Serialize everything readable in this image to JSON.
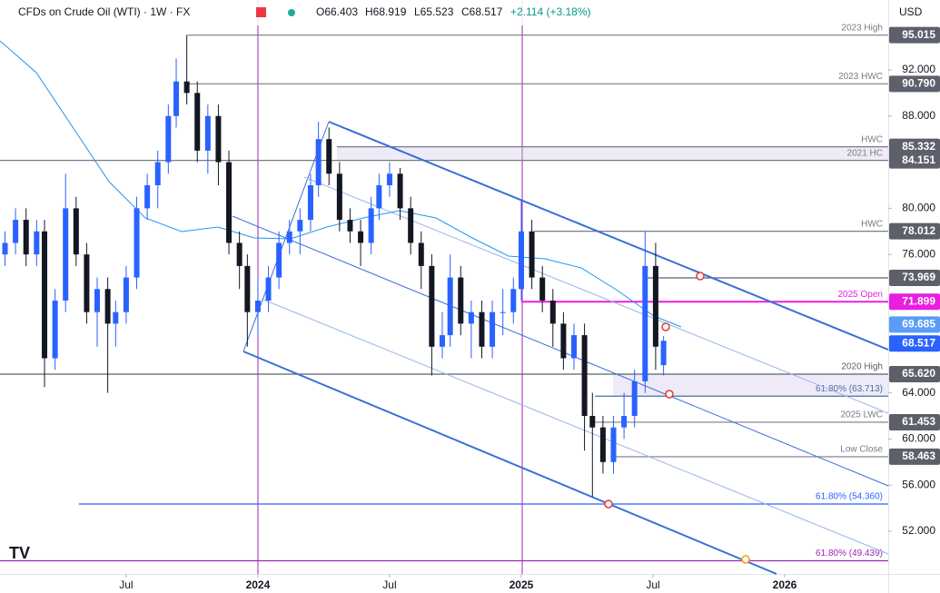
{
  "header": {
    "symbol": "CFDs on Crude Oil (WTI) · 1W · FX",
    "open": "O66.403",
    "high": "H68.919",
    "low": "L65.523",
    "close": "C68.517",
    "change": "+2.114 (+3.18%)",
    "currency": "USD"
  },
  "chart_data": {
    "type": "candlestick",
    "up_color": "#2962ff",
    "down_color": "#131722",
    "x": [
      2023.04,
      2023.08,
      2023.12,
      2023.16,
      2023.19,
      2023.23,
      2023.27,
      2023.31,
      2023.35,
      2023.39,
      2023.43,
      2023.46,
      2023.5,
      2023.54,
      2023.58,
      2023.62,
      2023.66,
      2023.69,
      2023.73,
      2023.77,
      2023.81,
      2023.85,
      2023.89,
      2023.93,
      2023.96,
      2024.0,
      2024.04,
      2024.08,
      2024.12,
      2024.16,
      2024.2,
      2024.23,
      2024.27,
      2024.31,
      2024.35,
      2024.39,
      2024.43,
      2024.46,
      2024.5,
      2024.54,
      2024.58,
      2024.62,
      2024.66,
      2024.7,
      2024.73,
      2024.77,
      2024.81,
      2024.85,
      2024.89,
      2024.93,
      2024.97,
      2025.0,
      2025.04,
      2025.08,
      2025.12,
      2025.16,
      2025.2,
      2025.24,
      2025.27,
      2025.31,
      2025.35,
      2025.39,
      2025.43,
      2025.47,
      2025.51,
      2025.54
    ],
    "ohlc": [
      [
        76,
        78,
        75,
        77
      ],
      [
        77,
        80,
        76,
        79
      ],
      [
        79,
        80,
        75,
        76
      ],
      [
        76,
        79,
        75,
        78
      ],
      [
        78,
        79,
        64.5,
        67
      ],
      [
        67,
        73,
        66,
        72
      ],
      [
        72,
        83,
        71,
        80
      ],
      [
        80,
        81,
        75,
        76
      ],
      [
        76,
        77,
        70,
        71
      ],
      [
        71,
        74,
        68,
        73
      ],
      [
        73,
        74,
        64,
        70
      ],
      [
        70,
        72,
        68,
        71
      ],
      [
        71,
        75,
        70,
        74
      ],
      [
        74,
        81,
        73,
        80
      ],
      [
        80,
        83,
        79,
        82
      ],
      [
        82,
        85,
        80,
        84
      ],
      [
        84,
        89,
        83,
        88
      ],
      [
        88,
        93,
        87,
        91
      ],
      [
        91,
        95,
        89,
        90
      ],
      [
        90,
        91,
        84,
        85
      ],
      [
        85,
        89,
        83,
        88
      ],
      [
        88,
        89,
        82,
        84
      ],
      [
        84,
        85,
        76,
        77
      ],
      [
        77,
        78,
        73,
        75
      ],
      [
        75,
        76,
        68,
        71
      ],
      [
        71,
        74,
        69,
        72
      ],
      [
        72,
        75,
        71,
        74
      ],
      [
        74,
        78,
        73,
        77
      ],
      [
        77,
        79,
        76,
        78
      ],
      [
        78,
        80,
        76,
        79
      ],
      [
        79,
        83,
        78,
        82
      ],
      [
        82,
        87.5,
        81,
        86
      ],
      [
        86,
        87,
        82,
        83
      ],
      [
        83,
        84,
        78,
        79
      ],
      [
        79,
        80,
        77,
        78
      ],
      [
        78,
        79,
        75,
        77
      ],
      [
        77,
        81,
        76,
        80
      ],
      [
        80,
        83,
        79,
        82
      ],
      [
        82,
        84,
        81,
        83
      ],
      [
        83,
        83.5,
        79,
        80
      ],
      [
        80,
        81,
        76,
        77
      ],
      [
        77,
        78,
        73,
        75
      ],
      [
        75,
        76,
        65.5,
        68
      ],
      [
        68,
        71,
        67,
        69
      ],
      [
        69,
        76,
        68,
        74
      ],
      [
        74,
        75,
        69,
        70
      ],
      [
        70,
        72,
        67,
        71
      ],
      [
        71,
        72,
        67,
        68
      ],
      [
        68,
        72,
        67,
        71
      ],
      [
        71,
        73,
        69,
        71
      ],
      [
        71,
        74,
        70,
        73
      ],
      [
        73,
        80.8,
        72,
        78
      ],
      [
        78,
        79,
        73,
        74
      ],
      [
        74,
        75,
        71,
        72
      ],
      [
        72,
        73,
        68,
        70
      ],
      [
        70,
        71,
        66,
        67
      ],
      [
        67,
        70,
        66,
        69
      ],
      [
        69,
        70,
        59,
        62
      ],
      [
        62,
        64,
        55,
        61
      ],
      [
        61,
        62,
        57,
        58
      ],
      [
        58,
        62,
        57,
        61
      ],
      [
        61,
        64,
        60,
        62
      ],
      [
        62,
        66,
        61,
        65
      ],
      [
        65,
        78,
        64,
        75
      ],
      [
        75,
        77,
        66,
        68
      ],
      [
        66.403,
        68.919,
        65.523,
        68.517
      ]
    ],
    "xlim": [
      2023.021,
      2026.393
    ],
    "xticks": [
      {
        "value": 2023.5,
        "label": "Jul"
      },
      2024,
      {
        "value": 2024.5,
        "label": "Jul"
      },
      2025,
      {
        "value": 2025.5,
        "label": "Jul"
      },
      2026
    ],
    "ylim": [
      47.67,
      98.06
    ],
    "yticks": [
      {
        "value": 92,
        "label": "92.000"
      },
      {
        "value": 88,
        "label": "88.000"
      },
      {
        "value": 80,
        "label": "80.000"
      },
      {
        "value": 76,
        "label": "76.000"
      },
      {
        "value": 64,
        "label": "64.000"
      },
      {
        "value": 60,
        "label": "60.000"
      },
      {
        "value": 56,
        "label": "56.000"
      },
      {
        "value": 52,
        "label": "52.000"
      }
    ],
    "levels": [
      {
        "value": 95.015,
        "label": "2023 High",
        "tag": "95.015",
        "x_start": 2023.73,
        "color": "#787b86"
      },
      {
        "value": 90.79,
        "label": "2023 HWC",
        "tag": "90.790",
        "x_start": 2023.73,
        "color": "#787b86"
      },
      {
        "value": 85.332,
        "label": "HWC",
        "tag": "85.332",
        "x_start": 2024.3,
        "color": "#787b86"
      },
      {
        "value": 84.151,
        "label": "2021 HC",
        "tag": "84.151",
        "color": "#787b86"
      },
      {
        "value": 78.012,
        "label": "HWC",
        "tag": "78.012",
        "x_start": 2025.05,
        "color": "#787b86"
      },
      {
        "value": 73.969,
        "tag": "73.969",
        "x_start": 2025.47,
        "color": "#5d606b"
      },
      {
        "value": 71.899,
        "label": "2025 Open",
        "tag": "71.899",
        "x_start": 2025.0,
        "color": "#e91ee0"
      },
      {
        "value": 65.62,
        "label": "2020 High",
        "tag": "65.620",
        "color": "#5d606b"
      },
      {
        "value": 63.713,
        "label": "61.80% (63.713)",
        "x_start": 2025.28,
        "color": "#4a6fa5"
      },
      {
        "value": 61.453,
        "label": "2025 LWC",
        "tag": "61.453",
        "x_start": 2025.28,
        "color": "#787b86"
      },
      {
        "value": 58.463,
        "label": "Low Close",
        "tag": "58.463",
        "x_start": 2025.36,
        "color": "#787b86"
      },
      {
        "value": 54.36,
        "label": "61.80% (54.360)",
        "x_start": 2023.32,
        "color": "#2962ff"
      },
      {
        "value": 49.439,
        "label": "61.80% (49.439)",
        "color": "#9c27b0"
      }
    ],
    "price_tags": [
      {
        "value": 69.685,
        "tag": "69.685",
        "color": "#5b9cf6"
      },
      {
        "value": 68.517,
        "tag": "68.517",
        "color": "#2962ff"
      }
    ]
  }
}
